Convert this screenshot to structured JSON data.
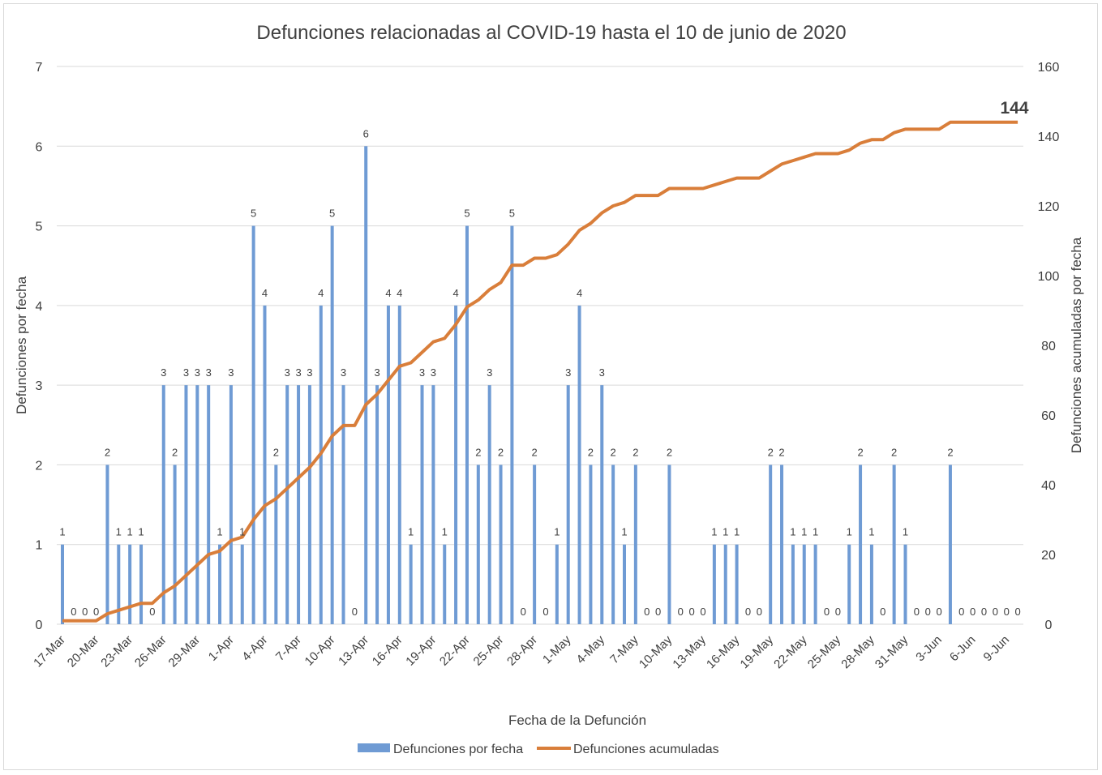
{
  "chart_data": {
    "type": "bar+line",
    "title": "Defunciones relacionadas al COVID-19 hasta el 10 de junio de 2020",
    "xlabel": "Fecha de la Defunción",
    "ylabel": "Defunciones por fecha",
    "y2label": "Defunciones acumuladas por fecha",
    "ylim": [
      0,
      7
    ],
    "y2lim": [
      0,
      160
    ],
    "yticks": [
      "0",
      "1",
      "2",
      "3",
      "4",
      "5",
      "6",
      "7"
    ],
    "y2ticks": [
      "0",
      "20",
      "40",
      "60",
      "80",
      "100",
      "120",
      "140",
      "160"
    ],
    "grid": true,
    "legend_position": "bottom",
    "xtick_labels": [
      "17-Mar",
      "20-Mar",
      "23-Mar",
      "26-Mar",
      "29-Mar",
      "1-Apr",
      "4-Apr",
      "7-Apr",
      "10-Apr",
      "13-Apr",
      "16-Apr",
      "19-Apr",
      "22-Apr",
      "25-Apr",
      "28-Apr",
      "1-May",
      "4-May",
      "7-May",
      "10-May",
      "13-May",
      "16-May",
      "19-May",
      "22-May",
      "25-May",
      "28-May",
      "31-May",
      "3-Jun",
      "6-Jun",
      "9-Jun"
    ],
    "x_start": "17-Mar",
    "x_end": "10-Jun",
    "series": [
      {
        "name": "Defunciones por fecha",
        "type": "bar",
        "color": "#6f9bd4",
        "values": [
          1,
          0,
          0,
          0,
          2,
          1,
          1,
          1,
          0,
          3,
          2,
          3,
          3,
          3,
          1,
          3,
          1,
          5,
          4,
          2,
          3,
          3,
          3,
          4,
          5,
          3,
          0,
          6,
          3,
          4,
          4,
          1,
          3,
          3,
          1,
          4,
          5,
          2,
          3,
          2,
          5,
          0,
          2,
          0,
          1,
          3,
          4,
          2,
          3,
          2,
          1,
          2,
          0,
          0,
          2,
          0,
          0,
          0,
          1,
          1,
          1,
          0,
          0,
          2,
          2,
          1,
          1,
          1,
          0,
          0,
          1,
          2,
          1,
          0,
          2,
          1,
          0,
          0,
          0,
          2,
          0,
          0,
          0,
          0,
          0,
          0
        ]
      },
      {
        "name": "Defunciones acumuladas",
        "type": "line",
        "axis": "right",
        "color": "#d97e3a",
        "final_label": "144"
      }
    ]
  }
}
